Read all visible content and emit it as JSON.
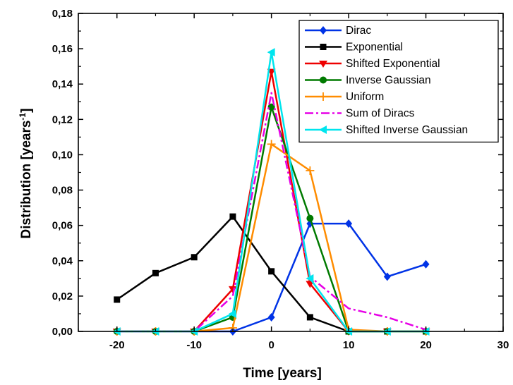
{
  "chart_data": {
    "type": "line",
    "xlabel": "Time [years]",
    "ylabel_main": "Distribution [years",
    "ylabel_sup": "-1",
    "ylabel_close": "]",
    "xlim": [
      -25,
      30
    ],
    "ylim": [
      0,
      0.18
    ],
    "x_ticks": [
      -20,
      -10,
      0,
      10,
      20,
      30
    ],
    "x_tick_labels": [
      "-20",
      "-10",
      "0",
      "10",
      "20",
      "30"
    ],
    "y_ticks": [
      0,
      0.02,
      0.04,
      0.06,
      0.08,
      0.1,
      0.12,
      0.14,
      0.16,
      0.18
    ],
    "y_tick_labels": [
      "0,00",
      "0,02",
      "0,04",
      "0,06",
      "0,08",
      "0,10",
      "0,12",
      "0,14",
      "0,16",
      "0,18"
    ],
    "grid": false,
    "legend_position": "top-right",
    "x": [
      -20,
      -15,
      -10,
      -5,
      0,
      5,
      10,
      15,
      20
    ],
    "series": [
      {
        "name": "Dirac",
        "color": "#0033e6",
        "marker": "diamond",
        "dash": "solid",
        "values": [
          0,
          0,
          0,
          0,
          0.008,
          0.061,
          0.061,
          0.031,
          0.038
        ]
      },
      {
        "name": "Exponential",
        "color": "#000000",
        "marker": "square",
        "dash": "solid",
        "values": [
          0.018,
          0.033,
          0.042,
          0.065,
          0.034,
          0.008,
          0,
          0,
          0
        ]
      },
      {
        "name": "Shifted Exponential",
        "color": "#ee0000",
        "marker": "triangle-down",
        "dash": "solid",
        "values": [
          0,
          0,
          0,
          0.024,
          0.147,
          0.027,
          0,
          0,
          0
        ]
      },
      {
        "name": "Inverse Gaussian",
        "color": "#007a00",
        "marker": "circle",
        "dash": "solid",
        "values": [
          0,
          0,
          0,
          0.008,
          0.127,
          0.064,
          0,
          0,
          0
        ]
      },
      {
        "name": "Uniform",
        "color": "#ff8c00",
        "marker": "plus",
        "dash": "solid",
        "values": [
          0,
          0,
          0,
          0.002,
          0.106,
          0.091,
          0.001,
          0,
          0
        ]
      },
      {
        "name": "Sum of Diracs",
        "color": "#e600e6",
        "marker": "none",
        "dash": "dashdot",
        "values": [
          0,
          0,
          0,
          0.02,
          0.135,
          0.031,
          0.013,
          0.008,
          0.001
        ]
      },
      {
        "name": "Shifted Inverse Gaussian",
        "color": "#00e5ee",
        "marker": "triangle-left",
        "dash": "solid",
        "values": [
          0,
          0,
          0,
          0.01,
          0.158,
          0.03,
          0,
          0,
          0
        ]
      }
    ]
  }
}
